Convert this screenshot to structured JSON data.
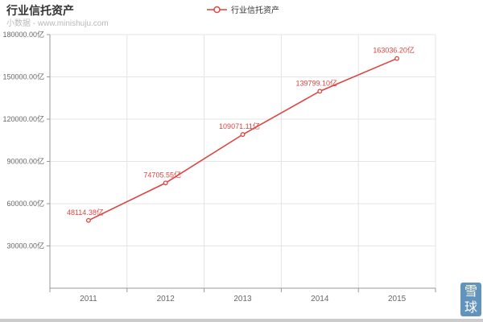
{
  "header": {
    "title": "行业信托资产",
    "subtitle": "小数据 - www.minishuju.com"
  },
  "legend": {
    "label": "行业信托资产"
  },
  "watermark": {
    "line1": "雪",
    "line2": "球"
  },
  "colors": {
    "series": "#dc4540",
    "axis": "#999999",
    "grid": "#e4e4e4",
    "tick_label": "#666666",
    "data_label": "#dc4540",
    "title": "#333333",
    "subtitle": "#b9b9b9",
    "watermark_bg": "#6293bd",
    "footer_bar": "#cccccc"
  },
  "chart_data": {
    "type": "line",
    "title": "行业信托资产",
    "categories": [
      "2011",
      "2012",
      "2013",
      "2014",
      "2015"
    ],
    "series": [
      {
        "name": "行业信托资产",
        "values": [
          48114.38,
          74705.55,
          109071.11,
          139799.1,
          163036.2
        ]
      }
    ],
    "data_labels": [
      "48114.38亿",
      "74705.55亿",
      "109071.11亿",
      "139799.10亿",
      "163036.20亿"
    ],
    "unit": "亿",
    "xlabel": "",
    "ylabel": "",
    "ylim": [
      0,
      180000
    ],
    "y_tick_values": [
      30000,
      60000,
      90000,
      120000,
      150000,
      180000
    ],
    "y_tick_labels": [
      "30000.00亿",
      "60000.00亿",
      "90000.00亿",
      "120000.00亿",
      "150000.00亿",
      "180000.00亿"
    ],
    "grid": true,
    "legend_position": "top-center",
    "marker": "open-circle"
  }
}
